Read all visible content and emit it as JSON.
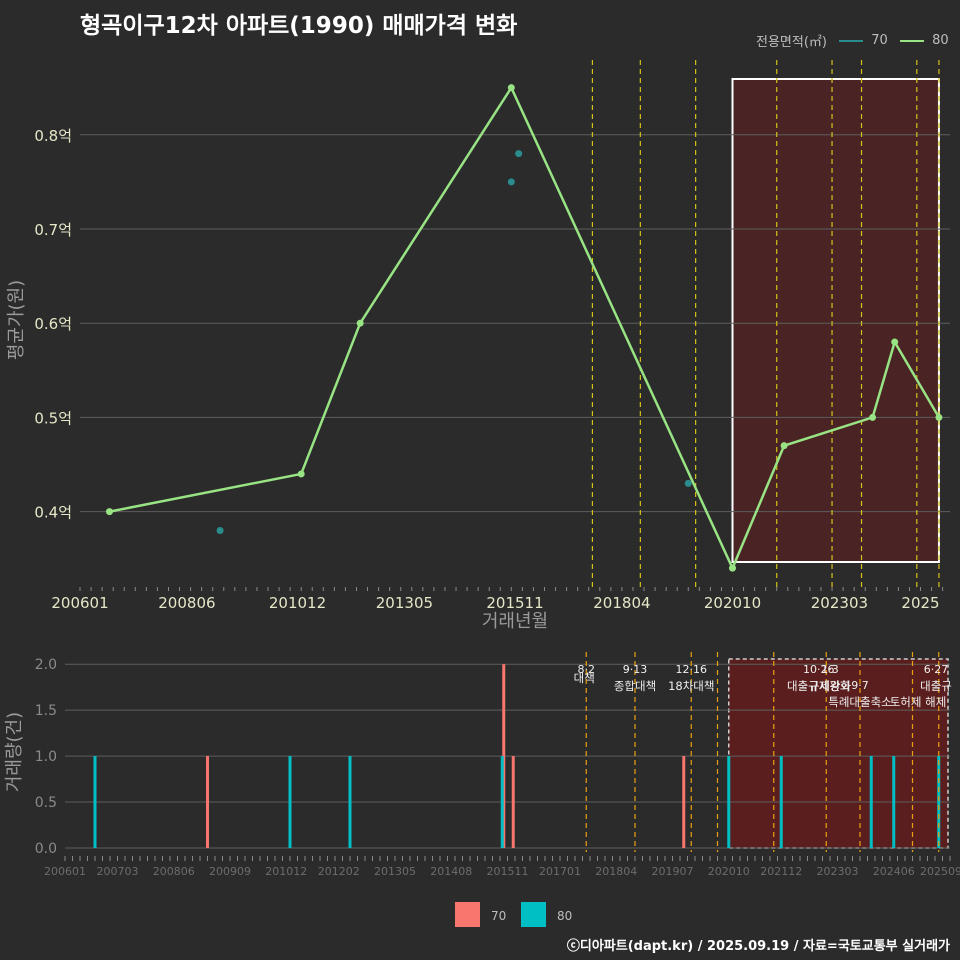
{
  "title": "형곡이구12차 아파트(1990) 매매가격 변화",
  "legend": {
    "title": "전용면적(㎡)",
    "items": [
      {
        "label": "70",
        "color": "#2a8c8c"
      },
      {
        "label": "80",
        "color": "#98e384"
      }
    ]
  },
  "footer": "ⓒ디아파트(dapt.kr) / 2025.09.19 / 자료=국토교통부 실거래가",
  "chart_data": [
    {
      "type": "line",
      "title": "형곡이구12차 아파트(1990) 매매가격 변화",
      "xlabel": "거래년월",
      "ylabel": "평균가(원)",
      "x_ticks": [
        "200601",
        "200806",
        "201012",
        "201305",
        "201511",
        "201804",
        "202010",
        "202303",
        "2025"
      ],
      "y_ticks": [
        "0.4억",
        "0.5억",
        "0.6억",
        "0.7억",
        "0.8억"
      ],
      "ylim": [
        0.32,
        0.89
      ],
      "series": [
        {
          "name": "80",
          "color": "#98e384",
          "style": "line",
          "points": [
            {
              "x": "2006-09",
              "y": 0.4
            },
            {
              "x": "2011-01",
              "y": 0.44
            },
            {
              "x": "2012-05",
              "y": 0.6
            },
            {
              "x": "2015-10",
              "y": 0.85
            },
            {
              "x": "2020-10",
              "y": 0.34
            },
            {
              "x": "2021-12",
              "y": 0.47
            },
            {
              "x": "2023-12",
              "y": 0.5
            },
            {
              "x": "2024-06",
              "y": 0.58
            },
            {
              "x": "2025-06",
              "y": 0.5
            }
          ]
        },
        {
          "name": "70",
          "color": "#2a8c8c",
          "style": "points",
          "points": [
            {
              "x": "2009-03",
              "y": 0.38
            },
            {
              "x": "2015-10",
              "y": 0.75
            },
            {
              "x": "2015-12",
              "y": 0.78
            },
            {
              "x": "2019-10",
              "y": 0.43
            }
          ]
        }
      ],
      "policy_lines": [
        "2017-08",
        "2018-09",
        "2019-12",
        "2021-10",
        "2023-01",
        "2023-09",
        "2024-12",
        "2025-06"
      ],
      "highlight_start": "2020-10",
      "highlight_end": "2025-06"
    },
    {
      "type": "bar",
      "xlabel": "",
      "ylabel": "거래량(건)",
      "x_ticks": [
        "200601",
        "200703",
        "200806",
        "200909",
        "201012",
        "201202",
        "201305",
        "201408",
        "201511",
        "201701",
        "201804",
        "201907",
        "202010",
        "202112",
        "202303",
        "202406",
        "202509"
      ],
      "y_ticks": [
        "0.0",
        "0.5",
        "1.0",
        "1.5",
        "2.0"
      ],
      "ylim": [
        0,
        2.1
      ],
      "bars": [
        {
          "x": "2006-09",
          "series": "80",
          "value": 1
        },
        {
          "x": "2009-03",
          "series": "70",
          "value": 1
        },
        {
          "x": "2011-01",
          "series": "80",
          "value": 1
        },
        {
          "x": "2012-05",
          "series": "80",
          "value": 1
        },
        {
          "x": "2015-10",
          "series": "70",
          "value": 2
        },
        {
          "x": "2015-10",
          "series": "80",
          "value": 1
        },
        {
          "x": "2015-12",
          "series": "70",
          "value": 1
        },
        {
          "x": "2019-10",
          "series": "70",
          "value": 1
        },
        {
          "x": "2020-10",
          "series": "80",
          "value": 1
        },
        {
          "x": "2021-12",
          "series": "80",
          "value": 1
        },
        {
          "x": "2023-12",
          "series": "80",
          "value": 1
        },
        {
          "x": "2024-06",
          "series": "80",
          "value": 1
        },
        {
          "x": "2025-06",
          "series": "80",
          "value": 1
        }
      ],
      "policy_lines": [
        "2017-08",
        "2018-09",
        "2019-12",
        "2020-07",
        "2021-10",
        "2022-12",
        "2023-09",
        "2024-11",
        "2025-06"
      ],
      "annotations": [
        {
          "x": "2017-08",
          "date": "8·2",
          "label": "대책"
        },
        {
          "x": "2018-09",
          "date": "9·13",
          "label": "종합대책"
        },
        {
          "x": "2019-12",
          "date": "12·16",
          "label": "18차대책"
        },
        {
          "x": "2022-10",
          "date": "10·26",
          "label": "대출규제강화"
        },
        {
          "x": "2023-01",
          "date": "1·3",
          "label": "규제완화"
        },
        {
          "x": "2023-09",
          "date": "9·7",
          "label": "특례대출축소"
        },
        {
          "x": "2025-03",
          "date": "",
          "label": "토허제 해제"
        },
        {
          "x": "2025-06",
          "date": "6·27",
          "label": "대출규"
        }
      ],
      "highlight_start": "2020-10",
      "highlight_end": "2025-09",
      "legend": [
        {
          "label": "70",
          "color": "#f8766d"
        },
        {
          "label": "80",
          "color": "#00bfc4"
        }
      ]
    }
  ]
}
